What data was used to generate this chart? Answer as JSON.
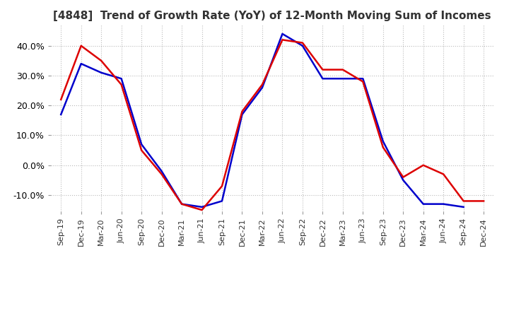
{
  "title": "[4848]  Trend of Growth Rate (YoY) of 12-Month Moving Sum of Incomes",
  "title_fontsize": 11,
  "ylim": [
    -0.155,
    0.47
  ],
  "yticks": [
    -0.1,
    0.0,
    0.1,
    0.2,
    0.3,
    0.4
  ],
  "background_color": "#ffffff",
  "grid_color": "#bbbbbb",
  "ordinary_color": "#0000cc",
  "net_color": "#dd0000",
  "x_labels": [
    "Sep-19",
    "Dec-19",
    "Mar-20",
    "Jun-20",
    "Sep-20",
    "Dec-20",
    "Mar-21",
    "Jun-21",
    "Sep-21",
    "Dec-21",
    "Mar-22",
    "Jun-22",
    "Sep-22",
    "Dec-22",
    "Mar-23",
    "Jun-23",
    "Sep-23",
    "Dec-23",
    "Mar-24",
    "Jun-24",
    "Sep-24",
    "Dec-24"
  ],
  "ordinary_income": [
    0.17,
    0.34,
    0.31,
    0.29,
    0.07,
    -0.02,
    -0.13,
    -0.14,
    -0.12,
    0.17,
    0.26,
    0.44,
    0.4,
    0.29,
    0.29,
    0.29,
    0.08,
    -0.05,
    -0.13,
    -0.13,
    -0.14,
    null
  ],
  "net_income": [
    0.22,
    0.4,
    0.35,
    0.27,
    0.05,
    -0.03,
    -0.13,
    -0.15,
    -0.07,
    0.18,
    0.27,
    0.42,
    0.41,
    0.32,
    0.32,
    0.28,
    0.06,
    -0.04,
    0.0,
    -0.03,
    -0.12,
    -0.12
  ]
}
